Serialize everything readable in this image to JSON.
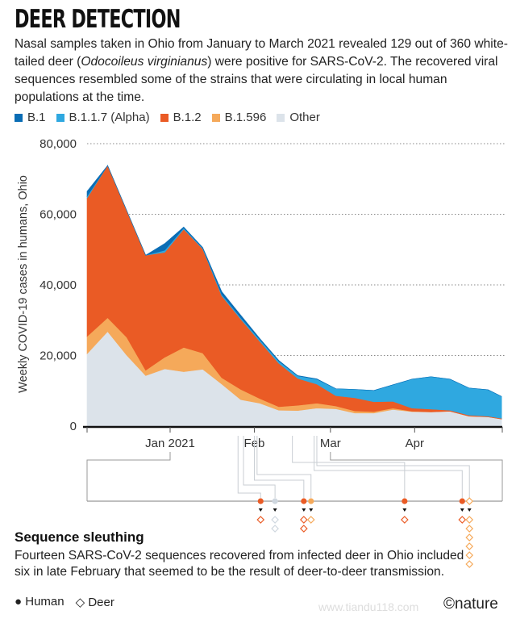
{
  "header": {
    "title": "DEER DETECTION",
    "subtitle_parts": [
      "Nasal samples taken in Ohio from January to March 2021 revealed 129 out of 360 white-tailed deer (",
      "Odocoileus virginianus",
      ") were positive for SARS-CoV-2. The recovered viral sequences resembled some of the strains that were circulating in local human populations at the time."
    ]
  },
  "legend": [
    {
      "label": "B.1",
      "color": "#0a6db5"
    },
    {
      "label": "B.1.1.7 (Alpha)",
      "color": "#2fa8e0"
    },
    {
      "label": "B.1.2",
      "color": "#ea5b25"
    },
    {
      "label": "B.1.596",
      "color": "#f5a95a"
    },
    {
      "label": "Other",
      "color": "#dce3ea"
    }
  ],
  "chart_data": {
    "type": "area",
    "stacked": true,
    "title": "",
    "ylabel": "Weekly COVID-19 cases in humans, Ohio",
    "ylim": [
      0,
      80000
    ],
    "yticks": [
      "0",
      "20,000",
      "40,000",
      "60,000",
      "80,000"
    ],
    "ytick_values": [
      0,
      20000,
      40000,
      60000,
      80000
    ],
    "grid": "horizontal dotted",
    "xlim": [
      "2020-12-02",
      "2021-05-03"
    ],
    "xticks": [
      {
        "label": "Jan 2021",
        "date": "2021-01-01"
      },
      {
        "label": "Feb",
        "date": "2021-02-01"
      },
      {
        "label": "Mar",
        "date": "2021-03-01"
      },
      {
        "label": "Apr",
        "date": "2021-04-01"
      }
    ],
    "x": [
      "2020-12-02",
      "2020-12-09",
      "2020-12-16",
      "2020-12-23",
      "2020-12-30",
      "2021-01-06",
      "2021-01-13",
      "2021-01-20",
      "2021-01-27",
      "2021-02-03",
      "2021-02-10",
      "2021-02-17",
      "2021-02-24",
      "2021-03-03",
      "2021-03-10",
      "2021-03-17",
      "2021-03-24",
      "2021-03-31",
      "2021-04-07",
      "2021-04-14",
      "2021-04-21",
      "2021-04-28",
      "2021-05-03"
    ],
    "series": [
      {
        "name": "Other",
        "color": "#dce3ea",
        "values": [
          20500,
          26800,
          20100,
          14300,
          16200,
          15400,
          16100,
          11900,
          7500,
          6500,
          4500,
          4400,
          5100,
          4900,
          3700,
          3700,
          4700,
          4100,
          4000,
          4200,
          2800,
          2600,
          2000
        ]
      },
      {
        "name": "B.1.596",
        "color": "#f5a95a",
        "values": [
          4900,
          3900,
          5100,
          1500,
          3300,
          6900,
          4600,
          1800,
          2900,
          1300,
          1000,
          1500,
          1400,
          800,
          600,
          400,
          400,
          100,
          0,
          0,
          0,
          0,
          0
        ]
      },
      {
        "name": "B.1.2",
        "color": "#ea5b25",
        "values": [
          39200,
          43100,
          35900,
          32600,
          29700,
          33500,
          29500,
          23200,
          19900,
          16200,
          12300,
          7600,
          5400,
          2900,
          3700,
          2800,
          1900,
          900,
          800,
          300,
          300,
          200,
          200
        ]
      },
      {
        "name": "B.1.1.7 (Alpha)",
        "color": "#2fa8e0",
        "values": [
          500,
          0,
          0,
          0,
          600,
          300,
          200,
          400,
          400,
          500,
          600,
          700,
          1400,
          2000,
          2400,
          3200,
          4700,
          8200,
          9200,
          8800,
          7700,
          7500,
          6200
        ]
      },
      {
        "name": "B.1",
        "color": "#0a6db5",
        "values": [
          1400,
          0,
          0,
          0,
          1900,
          300,
          200,
          800,
          700,
          300,
          200,
          100,
          100,
          0,
          0,
          0,
          0,
          0,
          0,
          0,
          0,
          0,
          0
        ]
      }
    ]
  },
  "sequences": {
    "range": [
      "2021-01-01",
      "2021-03-01"
    ],
    "events": [
      {
        "date": "2021-01-26",
        "variant": "B.1.2",
        "human": true,
        "deer": 1
      },
      {
        "date": "2021-01-28",
        "variant": "Other",
        "human": true,
        "deer": 2
      },
      {
        "date": "2021-02-01",
        "variant": "B.1.2",
        "human": true,
        "deer": 2
      },
      {
        "date": "2021-02-02",
        "variant": "B.1.596",
        "human": true,
        "deer": 1
      },
      {
        "date": "2021-02-15",
        "variant": "B.1.2",
        "human": true,
        "deer": 1
      },
      {
        "date": "2021-02-23",
        "variant": "B.1.2",
        "human": true,
        "deer": 1
      },
      {
        "date": "2021-02-24",
        "variant": "B.1.596",
        "human": false,
        "deer": 6
      }
    ]
  },
  "section": {
    "title": "Sequence sleuthing",
    "text": "Fourteen SARS-CoV-2 sequences recovered from infected deer in Ohio included six in late February that seemed to be the result of deer-to-deer transmission."
  },
  "key": {
    "human_symbol": "●",
    "human_label": "Human",
    "deer_symbol": "◇",
    "deer_label": "Deer"
  },
  "footer": {
    "watermark": "www.tiandu118.com",
    "brand": "©nature"
  }
}
